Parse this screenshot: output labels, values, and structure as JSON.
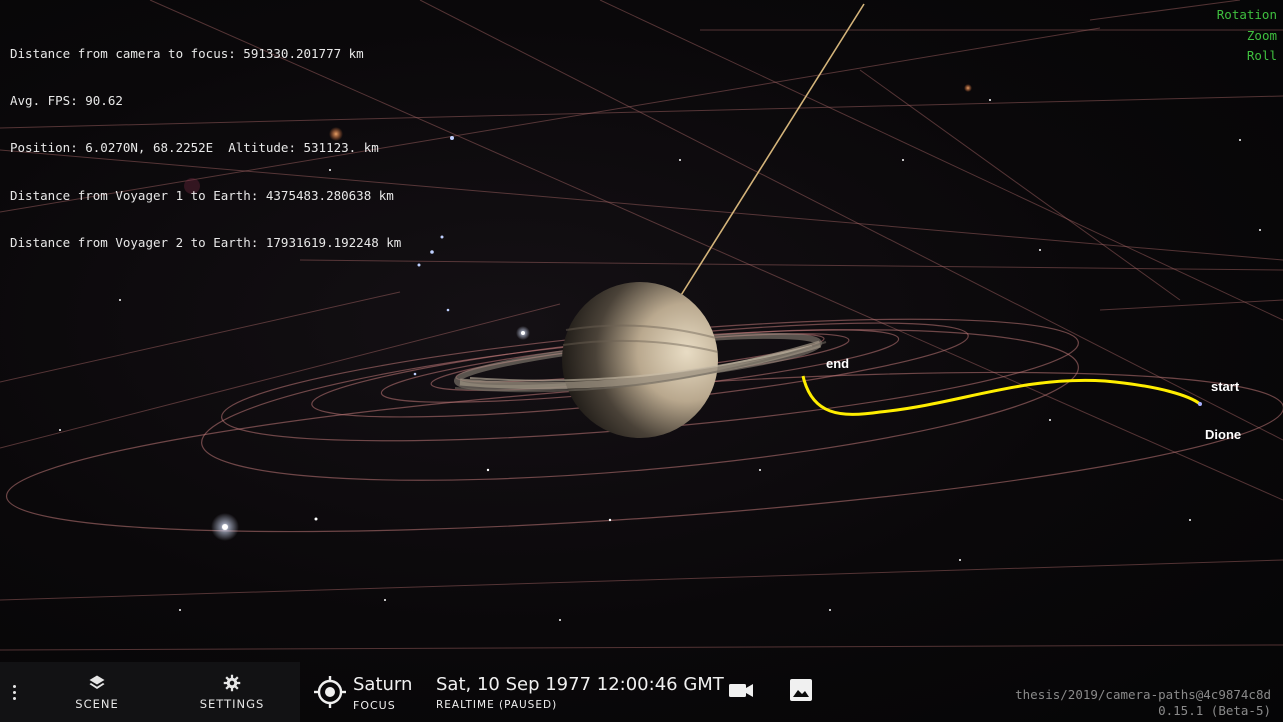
{
  "info": {
    "lines": [
      "Distance from camera to focus: 591330.201777 km",
      "Avg. FPS: 90.62",
      "Position: 6.0270N, 68.2252E  Altitude: 531123. km",
      "Distance from Voyager 1 to Earth: 4375483.280638 km",
      "Distance from Voyager 2 to Earth: 17931619.192248 km"
    ]
  },
  "controls": {
    "rotation": "Rotation",
    "zoom": "Zoom",
    "roll": "Roll"
  },
  "scene_labels": {
    "end": "end",
    "start": "start",
    "moon": "Dione"
  },
  "colors": {
    "path": "#ffee00",
    "controls": "#3fbf3f",
    "orbit": "#b06a6a"
  },
  "nav": {
    "scene_label": "SCENE",
    "settings_label": "SETTINGS",
    "menu_icon": "vertical-dots-icon",
    "scene_icon": "layers-icon",
    "settings_icon": "gear-icon"
  },
  "focus": {
    "name": "Saturn",
    "label": "FOCUS",
    "icon": "target-icon"
  },
  "time": {
    "date": "Sat, 10 Sep 1977 12:00:46 GMT",
    "mode": "REALTIME (PAUSED)"
  },
  "actions": {
    "camera_icon": "video-camera-icon",
    "screenshot_icon": "image-icon"
  },
  "version": {
    "branch": "thesis/2019/camera-paths@4c9874c8d",
    "number": "0.15.1 (Beta-5)"
  }
}
